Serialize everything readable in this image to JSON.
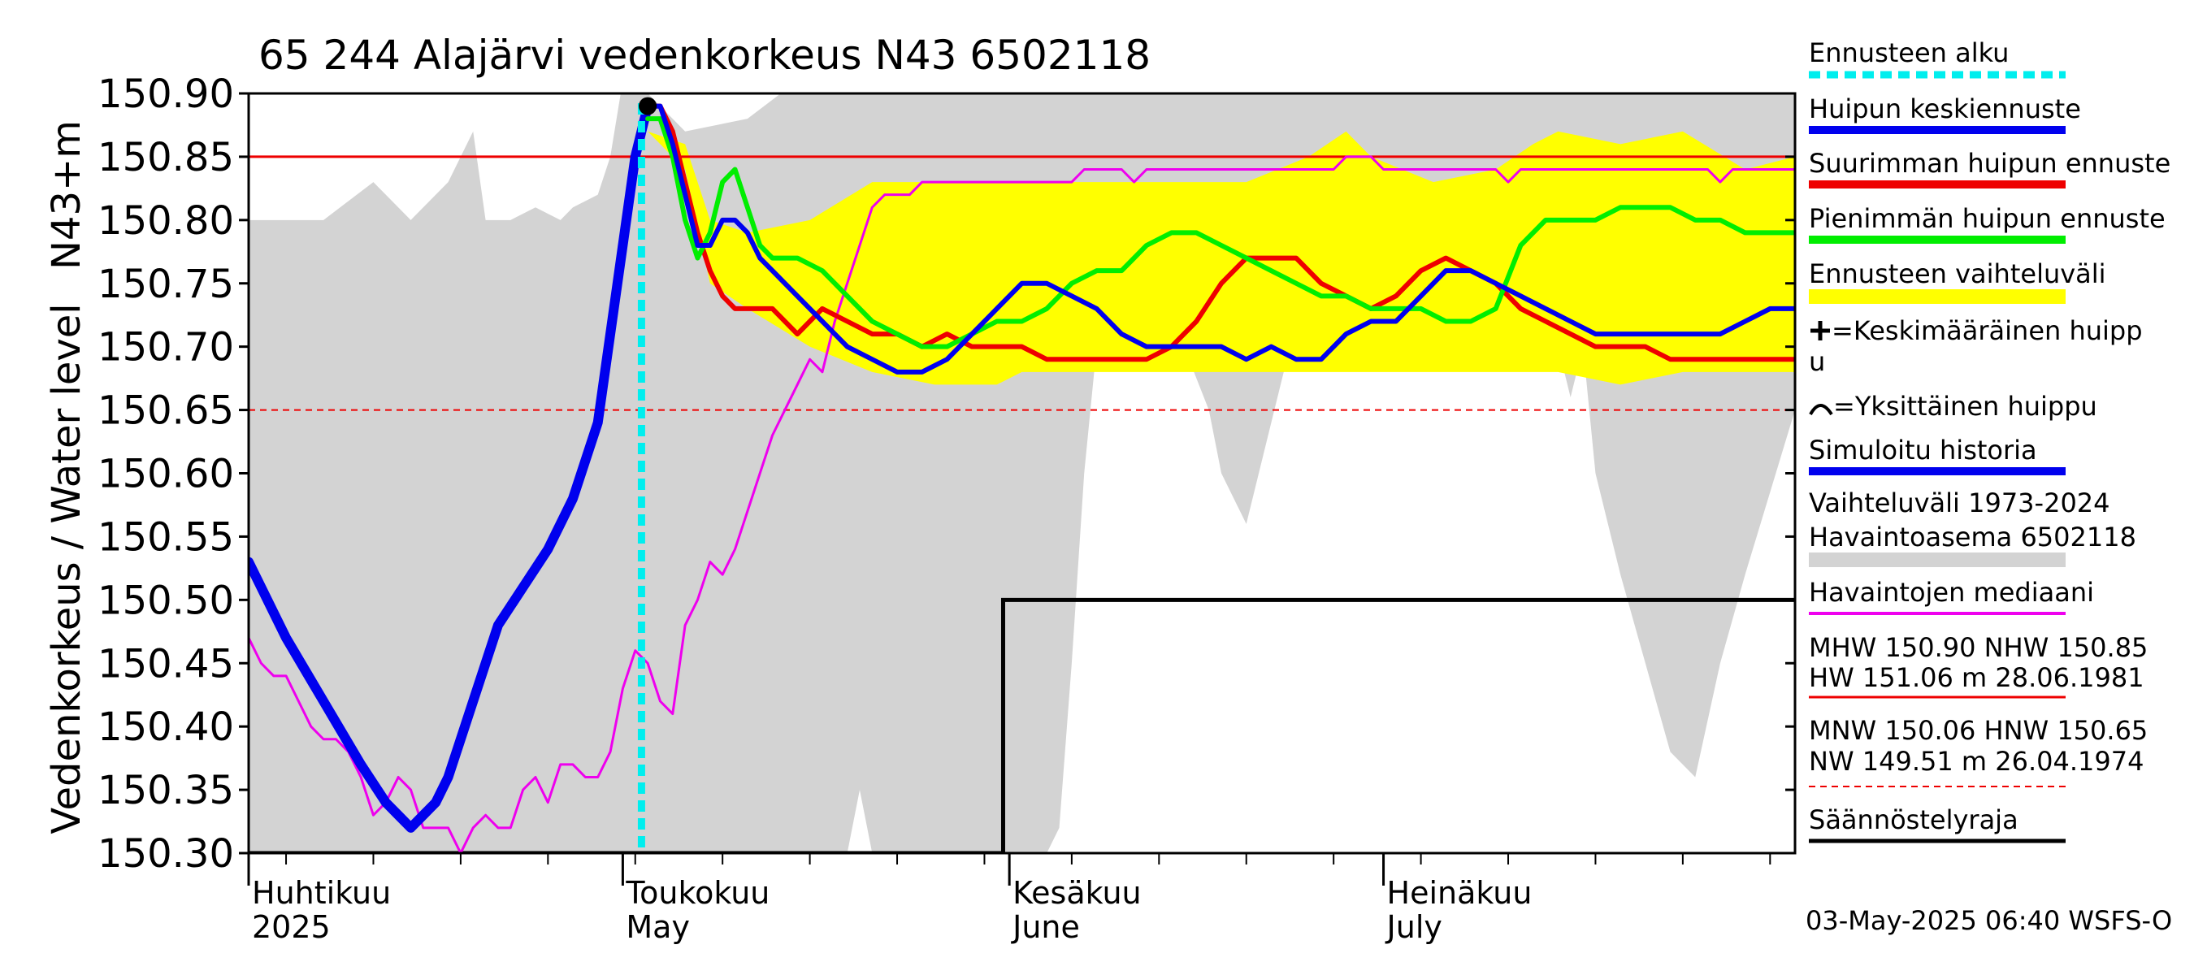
{
  "chart_data": {
    "type": "line",
    "title": "65 244 Alajärvi vedenkorkeus N43 6502118",
    "ylabel_main": "Vedenkorkeus / Water level",
    "ylabel_unit": "N43+m",
    "ylim": [
      150.3,
      150.9
    ],
    "y_ticks": [
      "150.30",
      "150.35",
      "150.40",
      "150.45",
      "150.50",
      "150.55",
      "150.60",
      "150.65",
      "150.70",
      "150.75",
      "150.80",
      "150.85",
      "150.90"
    ],
    "x_range_days": [
      0,
      124
    ],
    "x_start_date": "2025-03-29",
    "month_labels": [
      {
        "day": 3,
        "fi": "Huhtikuu",
        "en": "2025"
      },
      {
        "day": 33,
        "fi": "Toukokuu",
        "en": "May"
      },
      {
        "day": 64,
        "fi": "Kesäkuu",
        "en": "June"
      },
      {
        "day": 94,
        "fi": "Heinäkuu",
        "en": "July"
      }
    ],
    "reference_lines": {
      "NHW": 150.85,
      "HNW": 150.65
    },
    "forecast_start_day": 31.5,
    "history_band": {
      "x": [
        0,
        6,
        10,
        13,
        16,
        18,
        19,
        21,
        23,
        25,
        26,
        28,
        29,
        30,
        32,
        35,
        40,
        44,
        46,
        48,
        49,
        50,
        51,
        52,
        53,
        55,
        58,
        60,
        62,
        64,
        65,
        66,
        67,
        68,
        70,
        72,
        74,
        75,
        77,
        78,
        80,
        83,
        85,
        87,
        90,
        92,
        94,
        96,
        98,
        99,
        100,
        103,
        105,
        106,
        107,
        108,
        110,
        112,
        114,
        116,
        118,
        120,
        124
      ],
      "upper": [
        150.8,
        150.8,
        150.83,
        150.8,
        150.83,
        150.87,
        150.8,
        150.8,
        150.81,
        150.8,
        150.81,
        150.82,
        150.85,
        150.91,
        150.9,
        150.87,
        150.88,
        150.91,
        150.91,
        150.91,
        150.91,
        150.91,
        150.91,
        150.91,
        150.91,
        150.91,
        150.91,
        150.91,
        150.91,
        150.91,
        150.91,
        150.91,
        150.91,
        150.91,
        150.91,
        150.91,
        150.91,
        150.91,
        150.91,
        150.91,
        150.91,
        150.91,
        150.91,
        150.91,
        150.91,
        150.91,
        150.91,
        150.91,
        150.91,
        150.91,
        150.91,
        150.91,
        150.91,
        150.91,
        150.91,
        150.91,
        150.91,
        150.91,
        150.91,
        150.91,
        150.91,
        150.91,
        150.91
      ],
      "lower": [
        150.3,
        150.3,
        150.3,
        150.3,
        150.3,
        150.3,
        150.3,
        150.3,
        150.3,
        150.3,
        150.3,
        150.3,
        150.3,
        150.3,
        150.3,
        150.3,
        150.3,
        150.3,
        150.3,
        150.3,
        150.35,
        150.3,
        150.3,
        150.3,
        150.3,
        150.3,
        150.3,
        150.3,
        150.3,
        150.3,
        150.32,
        150.45,
        150.6,
        150.7,
        150.7,
        150.7,
        150.7,
        150.7,
        150.65,
        150.6,
        150.56,
        150.68,
        150.7,
        150.7,
        150.7,
        150.7,
        150.7,
        150.7,
        150.7,
        150.7,
        150.7,
        150.7,
        150.7,
        150.66,
        150.7,
        150.6,
        150.52,
        150.45,
        150.38,
        150.36,
        150.45,
        150.52,
        150.65
      ]
    },
    "forecast_band": {
      "x": [
        32,
        35,
        37,
        40,
        45,
        50,
        55,
        60,
        62,
        65,
        70,
        75,
        80,
        85,
        88,
        90,
        95,
        100,
        103,
        105,
        110,
        115,
        120,
        124
      ],
      "upper": [
        150.87,
        150.86,
        150.8,
        150.79,
        150.8,
        150.83,
        150.83,
        150.83,
        150.83,
        150.83,
        150.83,
        150.83,
        150.83,
        150.85,
        150.87,
        150.85,
        150.83,
        150.84,
        150.86,
        150.87,
        150.86,
        150.87,
        150.84,
        150.85
      ],
      "lower": [
        150.87,
        150.84,
        150.75,
        150.73,
        150.7,
        150.68,
        150.67,
        150.67,
        150.68,
        150.68,
        150.68,
        150.68,
        150.68,
        150.68,
        150.68,
        150.68,
        150.68,
        150.68,
        150.68,
        150.68,
        150.67,
        150.68,
        150.68,
        150.68
      ]
    },
    "series": [
      {
        "name": "Havaintojen mediaani",
        "color": "#ee00ee",
        "width": 3,
        "x": [
          0,
          1,
          2,
          3,
          4,
          5,
          6,
          7,
          8,
          9,
          10,
          11,
          12,
          13,
          14,
          15,
          16,
          17,
          18,
          19,
          20,
          21,
          22,
          23,
          24,
          25,
          26,
          27,
          28,
          29,
          30,
          31,
          32,
          33,
          34,
          35,
          36,
          37,
          38,
          39,
          40,
          41,
          42,
          43,
          44,
          45,
          46,
          47,
          48,
          49,
          50,
          51,
          52,
          53,
          54,
          55,
          56,
          57,
          58,
          59,
          60,
          61,
          62,
          63,
          64,
          65,
          66,
          67,
          68,
          69,
          70,
          71,
          72,
          73,
          74,
          75,
          76,
          77,
          78,
          79,
          80,
          81,
          82,
          83,
          84,
          85,
          86,
          87,
          88,
          89,
          90,
          91,
          92,
          93,
          94,
          95,
          96,
          97,
          98,
          99,
          100,
          101,
          102,
          103,
          104,
          105,
          106,
          107,
          108,
          109,
          110,
          111,
          112,
          113,
          114,
          115,
          116,
          117,
          118,
          119,
          120,
          121,
          122,
          123,
          124
        ],
        "y": [
          150.47,
          150.45,
          150.44,
          150.44,
          150.42,
          150.4,
          150.39,
          150.39,
          150.38,
          150.36,
          150.33,
          150.34,
          150.36,
          150.35,
          150.32,
          150.32,
          150.32,
          150.3,
          150.32,
          150.33,
          150.32,
          150.32,
          150.35,
          150.36,
          150.34,
          150.37,
          150.37,
          150.36,
          150.36,
          150.38,
          150.43,
          150.46,
          150.45,
          150.42,
          150.41,
          150.48,
          150.5,
          150.53,
          150.52,
          150.54,
          150.57,
          150.6,
          150.63,
          150.65,
          150.67,
          150.69,
          150.68,
          150.72,
          150.75,
          150.78,
          150.81,
          150.82,
          150.82,
          150.82,
          150.83,
          150.83,
          150.83,
          150.83,
          150.83,
          150.83,
          150.83,
          150.83,
          150.83,
          150.83,
          150.83,
          150.83,
          150.83,
          150.84,
          150.84,
          150.84,
          150.84,
          150.83,
          150.84,
          150.84,
          150.84,
          150.84,
          150.84,
          150.84,
          150.84,
          150.84,
          150.84,
          150.84,
          150.84,
          150.84,
          150.84,
          150.84,
          150.84,
          150.84,
          150.85,
          150.85,
          150.85,
          150.84,
          150.84,
          150.84,
          150.84,
          150.84,
          150.84,
          150.84,
          150.84,
          150.84,
          150.84,
          150.83,
          150.84,
          150.84,
          150.84,
          150.84,
          150.84,
          150.84,
          150.84,
          150.84,
          150.84,
          150.84,
          150.84,
          150.84,
          150.84,
          150.84,
          150.84,
          150.84,
          150.83,
          150.84,
          150.84,
          150.84,
          150.84,
          150.84,
          150.84
        ]
      },
      {
        "name": "Simuloitu historia",
        "color": "#0000ee",
        "width": 12,
        "x": [
          0,
          3,
          6,
          9,
          11,
          12,
          13,
          14,
          15,
          16,
          18,
          20,
          22,
          24,
          26,
          28,
          30,
          31,
          32
        ],
        "y": [
          150.53,
          150.47,
          150.42,
          150.37,
          150.34,
          150.33,
          150.32,
          150.33,
          150.34,
          150.36,
          150.42,
          150.48,
          150.51,
          150.54,
          150.58,
          150.64,
          150.78,
          150.85,
          150.89
        ]
      },
      {
        "name": "Suurimman huipun ennuste",
        "color": "#ee0000",
        "width": 6,
        "x": [
          32,
          33,
          34,
          35,
          36,
          37,
          38,
          39,
          40,
          42,
          44,
          46,
          48,
          50,
          52,
          54,
          56,
          58,
          60,
          62,
          64,
          66,
          68,
          70,
          72,
          74,
          76,
          78,
          80,
          82,
          84,
          86,
          88,
          90,
          92,
          94,
          96,
          98,
          100,
          102,
          104,
          106,
          108,
          110,
          112,
          114,
          116,
          118,
          120,
          122,
          124
        ],
        "y": [
          150.89,
          150.89,
          150.87,
          150.83,
          150.79,
          150.76,
          150.74,
          150.73,
          150.73,
          150.73,
          150.71,
          150.73,
          150.72,
          150.71,
          150.71,
          150.7,
          150.71,
          150.7,
          150.7,
          150.7,
          150.69,
          150.69,
          150.69,
          150.69,
          150.69,
          150.7,
          150.72,
          150.75,
          150.77,
          150.77,
          150.77,
          150.75,
          150.74,
          150.73,
          150.74,
          150.76,
          150.77,
          150.76,
          150.75,
          150.73,
          150.72,
          150.71,
          150.7,
          150.7,
          150.7,
          150.69,
          150.69,
          150.69,
          150.69,
          150.69,
          150.69
        ]
      },
      {
        "name": "Pienimmän huipun ennuste",
        "color": "#00ee00",
        "width": 6,
        "x": [
          32,
          33,
          34,
          35,
          36,
          37,
          38,
          39,
          40,
          41,
          42,
          44,
          46,
          48,
          50,
          52,
          54,
          56,
          58,
          60,
          62,
          64,
          66,
          68,
          70,
          72,
          74,
          76,
          78,
          80,
          82,
          84,
          86,
          88,
          90,
          92,
          94,
          96,
          98,
          100,
          102,
          104,
          106,
          108,
          110,
          112,
          114,
          116,
          118,
          120,
          122,
          124
        ],
        "y": [
          150.88,
          150.88,
          150.85,
          150.8,
          150.77,
          150.79,
          150.83,
          150.84,
          150.81,
          150.78,
          150.77,
          150.77,
          150.76,
          150.74,
          150.72,
          150.71,
          150.7,
          150.7,
          150.71,
          150.72,
          150.72,
          150.73,
          150.75,
          150.76,
          150.76,
          150.78,
          150.79,
          150.79,
          150.78,
          150.77,
          150.76,
          150.75,
          150.74,
          150.74,
          150.73,
          150.73,
          150.73,
          150.72,
          150.72,
          150.73,
          150.78,
          150.8,
          150.8,
          150.8,
          150.81,
          150.81,
          150.81,
          150.8,
          150.8,
          150.79,
          150.79,
          150.79
        ]
      },
      {
        "name": "Huipun keskiennuste",
        "color": "#0000ee",
        "width": 6,
        "x": [
          32,
          33,
          34,
          35,
          36,
          37,
          38,
          39,
          40,
          41,
          42,
          44,
          46,
          48,
          50,
          52,
          54,
          56,
          58,
          60,
          62,
          64,
          66,
          68,
          70,
          72,
          74,
          76,
          78,
          80,
          82,
          84,
          86,
          88,
          90,
          92,
          94,
          96,
          98,
          100,
          102,
          104,
          106,
          108,
          110,
          112,
          114,
          116,
          118,
          120,
          122,
          124
        ],
        "y": [
          150.89,
          150.89,
          150.86,
          150.82,
          150.78,
          150.78,
          150.8,
          150.8,
          150.79,
          150.77,
          150.76,
          150.74,
          150.72,
          150.7,
          150.69,
          150.68,
          150.68,
          150.69,
          150.71,
          150.73,
          150.75,
          150.75,
          150.74,
          150.73,
          150.71,
          150.7,
          150.7,
          150.7,
          150.7,
          150.69,
          150.7,
          150.69,
          150.69,
          150.71,
          150.72,
          150.72,
          150.74,
          150.76,
          150.76,
          150.75,
          150.74,
          150.73,
          150.72,
          150.71,
          150.71,
          150.71,
          150.71,
          150.71,
          150.71,
          150.72,
          150.73,
          150.73
        ]
      }
    ],
    "regulation_limit": {
      "name": "Säännöstelyraja",
      "color": "#000000",
      "x": [
        0,
        60.5,
        60.5,
        124
      ],
      "y": [
        150.3,
        150.3,
        150.5,
        150.5
      ]
    },
    "peak_marker": {
      "day": 32,
      "value": 150.89
    },
    "legend": {
      "ennusteen_alku": "Ennusteen alku",
      "huipun_keskiennuste": "Huipun keskiennuste",
      "suurimman": "Suurimman huipun ennuste",
      "pienimman": "Pienimmän huipun ennuste",
      "vaihteluvali": "Ennusteen vaihteluväli",
      "keskimaarainen_1": "=Keskimääräinen huipp",
      "keskimaarainen_2": "u",
      "yksittainen": "=Yksittäinen huippu",
      "simuloitu": "Simuloitu historia",
      "vaihtelu_hist_1": "Vaihteluväli 1973-2024",
      "vaihtelu_hist_2": " Havaintoasema 6502118",
      "mediaani": "Havaintojen mediaani",
      "mhw_1": "MHW 150.90 NHW 150.85",
      "mhw_2": "HW 151.06 m 28.06.1981",
      "mnw_1": "MNW 150.06 HNW 150.65",
      "mnw_2": "NW 149.51 m 26.04.1974",
      "saannostely": "Säännöstelyraja"
    },
    "timestamp": "03-May-2025 06:40 WSFS-O",
    "colors": {
      "history_band": "#d3d3d3",
      "forecast_band": "#ffff00",
      "forecast_start": "#00eeee",
      "nhw_line": "#ee0000",
      "hnw_line": "#ee0000"
    }
  }
}
